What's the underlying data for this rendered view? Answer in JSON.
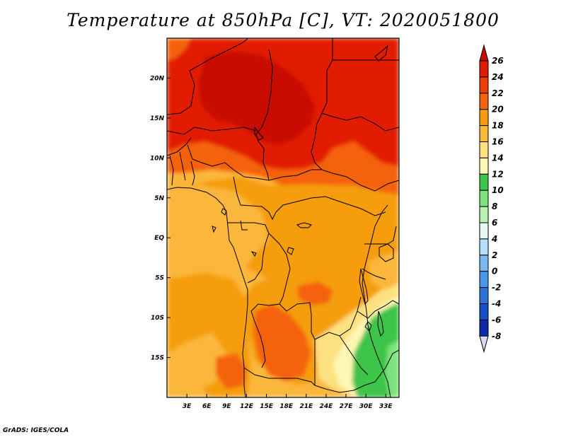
{
  "title": "Temperature at 850hPa [C], VT: 2020051800",
  "credit": "GrADS: IGES/COLA",
  "map": {
    "projection": "lat-lon",
    "lon_range": [
      0,
      35
    ],
    "lat_range": [
      -20,
      25
    ],
    "x_ticks": [
      "3E",
      "6E",
      "9E",
      "12E",
      "15E",
      "18E",
      "21E",
      "24E",
      "27E",
      "30E",
      "33E"
    ],
    "y_ticks": [
      "20N",
      "15N",
      "10N",
      "5N",
      "EQ",
      "5S",
      "10S",
      "15S"
    ],
    "field": "temperature at 850hPa",
    "units": "C"
  },
  "colorbar": {
    "levels": [
      "26",
      "24",
      "22",
      "20",
      "18",
      "16",
      "14",
      "12",
      "10",
      "8",
      "6",
      "4",
      "2",
      "0",
      "-2",
      "-4",
      "-6",
      "-8"
    ],
    "colors": [
      "#e11c00",
      "#ef3c08",
      "#f5620e",
      "#f59d0e",
      "#fbb73a",
      "#fde080",
      "#fef7b4",
      "#3ec44a",
      "#7ee27e",
      "#b8f2b0",
      "#e4f8f4",
      "#b6e0fa",
      "#7ab8f2",
      "#4a96e8",
      "#2a74d8",
      "#1450c8",
      "#0a2ca8",
      "#02106c"
    ],
    "over_color": "#c80a00",
    "under_color": "#dcd8f4"
  }
}
